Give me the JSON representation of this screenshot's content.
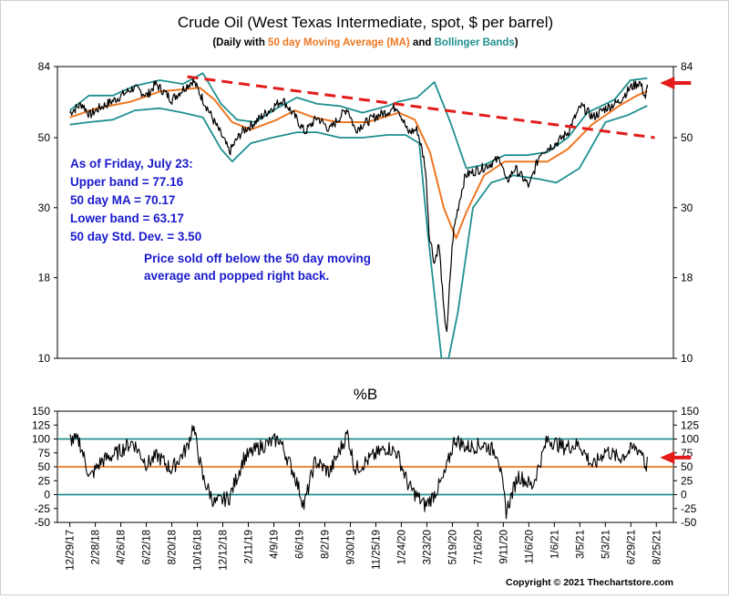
{
  "chart_data": [
    {
      "type": "line",
      "title": "Crude Oil (West Texas Intermediate, spot, $ per barrel)",
      "subtitle": {
        "prefix": "(Daily with ",
        "ma_label": "50 day Moving Average (MA)",
        "mid": " and ",
        "bb_label": "Bollinger Bands",
        "suffix": ")"
      },
      "scale": "log",
      "ylim": [
        10,
        84
      ],
      "yticks": [
        10,
        18,
        30,
        50,
        84
      ],
      "xlim": [
        "2017-12-01",
        "2021-09-20"
      ],
      "grid": false,
      "colors": {
        "price": "#000000",
        "ma": "#ee7722",
        "bands": "#1f8f8f",
        "trendline": "#e31b1b",
        "annotation": "#1a1acd",
        "arrow": "#e31b1b"
      },
      "series": [
        {
          "name": "Price",
          "x": [
            "2017-12-29",
            "2018-01-25",
            "2018-02-12",
            "2018-03-05",
            "2018-04-10",
            "2018-05-22",
            "2018-06-22",
            "2018-07-10",
            "2018-08-16",
            "2018-10-03",
            "2018-10-25",
            "2018-11-20",
            "2018-12-24",
            "2019-01-20",
            "2019-02-20",
            "2019-04-23",
            "2019-06-12",
            "2019-07-10",
            "2019-08-07",
            "2019-09-16",
            "2019-10-03",
            "2019-11-15",
            "2019-12-20",
            "2020-01-06",
            "2020-01-30",
            "2020-02-20",
            "2020-03-09",
            "2020-03-18",
            "2020-03-30",
            "2020-04-09",
            "2020-04-20",
            "2020-04-28",
            "2020-05-12",
            "2020-06-08",
            "2020-07-15",
            "2020-08-26",
            "2020-09-08",
            "2020-09-28",
            "2020-10-30",
            "2020-11-25",
            "2020-12-30",
            "2021-01-25",
            "2021-02-24",
            "2021-03-23",
            "2021-04-20",
            "2021-05-20",
            "2021-06-15",
            "2021-07-06",
            "2021-07-19",
            "2021-07-23"
          ],
          "values": [
            60,
            64,
            59,
            62,
            66,
            72,
            68,
            74,
            66,
            76,
            66,
            56,
            45,
            52,
            56,
            66,
            52,
            58,
            53,
            62,
            53,
            58,
            61,
            63,
            52,
            53,
            41,
            25,
            20,
            23,
            14,
            12,
            25,
            38,
            40,
            43,
            36,
            40,
            35,
            45,
            48,
            52,
            63,
            58,
            62,
            65,
            72,
            75,
            67,
            72
          ]
        },
        {
          "name": "50 day Moving Average (MA)",
          "x": [
            "2017-12-29",
            "2018-03-01",
            "2018-05-15",
            "2018-07-20",
            "2018-10-18",
            "2018-11-20",
            "2018-12-30",
            "2019-02-10",
            "2019-04-10",
            "2019-05-20",
            "2019-07-01",
            "2019-08-25",
            "2019-10-30",
            "2020-01-10",
            "2020-02-15",
            "2020-03-20",
            "2020-04-20",
            "2020-05-18",
            "2020-06-10",
            "2020-07-20",
            "2020-09-05",
            "2020-10-20",
            "2020-12-10",
            "2021-01-25",
            "2021-03-20",
            "2021-05-20",
            "2021-06-30",
            "2021-07-23"
          ],
          "values": [
            58,
            62,
            65,
            70,
            72,
            66,
            56,
            53,
            57,
            61,
            58,
            56,
            56,
            60,
            57,
            45,
            30,
            24,
            29,
            38,
            42,
            42,
            42,
            46,
            55,
            63,
            68,
            70.17
          ]
        },
        {
          "name": "Upper Bollinger Band",
          "x": [
            "2017-12-29",
            "2018-02-10",
            "2018-04-05",
            "2018-05-25",
            "2018-07-20",
            "2018-09-10",
            "2018-10-25",
            "2018-12-05",
            "2019-01-10",
            "2019-02-20",
            "2019-04-10",
            "2019-05-25",
            "2019-07-10",
            "2019-08-30",
            "2019-10-20",
            "2019-12-15",
            "2020-01-08",
            "2020-02-20",
            "2020-03-30",
            "2020-05-05",
            "2020-06-10",
            "2020-07-20",
            "2020-09-05",
            "2020-10-25",
            "2020-12-10",
            "2021-01-25",
            "2021-03-10",
            "2021-05-10",
            "2021-06-15",
            "2021-07-23"
          ],
          "values": [
            61,
            68,
            68,
            73,
            76,
            74,
            80,
            64,
            57,
            56,
            62,
            67,
            64,
            63,
            60,
            63,
            65,
            67,
            75,
            56,
            40,
            41,
            44,
            44,
            45,
            50,
            60,
            66,
            76,
            77.16
          ]
        },
        {
          "name": "Lower Bollinger Band",
          "x": [
            "2017-12-29",
            "2018-02-10",
            "2018-04-05",
            "2018-05-25",
            "2018-07-20",
            "2018-09-10",
            "2018-10-25",
            "2018-12-05",
            "2018-12-30",
            "2019-02-10",
            "2019-03-30",
            "2019-05-25",
            "2019-07-10",
            "2019-08-30",
            "2019-10-20",
            "2019-12-15",
            "2020-01-25",
            "2020-02-25",
            "2020-03-15",
            "2020-04-15",
            "2020-05-01",
            "2020-05-22",
            "2020-06-25",
            "2020-08-05",
            "2020-09-25",
            "2020-11-20",
            "2020-12-30",
            "2021-02-20",
            "2021-04-20",
            "2021-06-10",
            "2021-07-23"
          ],
          "values": [
            55,
            56,
            57,
            61,
            62,
            60,
            58,
            46,
            42,
            48,
            50,
            52,
            52,
            50,
            50,
            51,
            51,
            48,
            25,
            10,
            10,
            14,
            30,
            36,
            38,
            37,
            36,
            40,
            56,
            59,
            63.17
          ]
        }
      ],
      "annotations": [
        {
          "name": "stats",
          "lines": [
            "As of Friday, July 23:",
            "Upper band = 77.16",
            "50 day MA = 70.17",
            "Lower band = 63.17",
            "50 day Std. Dev. = 3.50"
          ]
        },
        {
          "name": "note",
          "lines": [
            "Price sold off below the 50 day moving",
            "average and popped right back."
          ]
        }
      ],
      "trendline": {
        "x": [
          "2018-09-20",
          "2021-08-09"
        ],
        "values": [
          78,
          50
        ]
      },
      "arrow": {
        "x": "2021-07-23",
        "value": 74
      }
    },
    {
      "type": "line",
      "title": "%B",
      "ylim": [
        -50,
        150
      ],
      "yticks": [
        -50,
        -25,
        0,
        25,
        50,
        75,
        100,
        125,
        150
      ],
      "reference_lines": [
        {
          "value": 100,
          "color": "#1f8f8f"
        },
        {
          "value": 50,
          "color": "#ee7722"
        },
        {
          "value": 0,
          "color": "#1f8f8f"
        }
      ],
      "series": [
        {
          "name": "%B",
          "x": [
            "2017-12-29",
            "2018-01-20",
            "2018-02-12",
            "2018-03-10",
            "2018-04-15",
            "2018-05-20",
            "2018-06-20",
            "2018-07-15",
            "2018-08-15",
            "2018-09-20",
            "2018-10-03",
            "2018-10-25",
            "2018-11-20",
            "2018-12-24",
            "2019-01-25",
            "2019-03-01",
            "2019-04-15",
            "2019-05-20",
            "2019-06-10",
            "2019-07-05",
            "2019-08-07",
            "2019-09-16",
            "2019-10-03",
            "2019-11-15",
            "2019-12-15",
            "2020-01-06",
            "2020-02-01",
            "2020-03-09",
            "2020-03-25",
            "2020-04-20",
            "2020-05-15",
            "2020-06-10",
            "2020-07-20",
            "2020-08-20",
            "2020-09-08",
            "2020-10-05",
            "2020-11-06",
            "2020-12-10",
            "2021-01-15",
            "2021-02-20",
            "2021-03-23",
            "2021-04-20",
            "2021-05-20",
            "2021-06-25",
            "2021-07-15",
            "2021-07-19",
            "2021-07-23"
          ],
          "values": [
            100,
            95,
            30,
            60,
            75,
            95,
            55,
            70,
            45,
            85,
            125,
            30,
            -15,
            -5,
            65,
            85,
            100,
            35,
            -20,
            60,
            40,
            110,
            45,
            70,
            85,
            75,
            15,
            -20,
            -5,
            30,
            100,
            85,
            90,
            75,
            -30,
            35,
            15,
            100,
            85,
            90,
            50,
            80,
            65,
            85,
            75,
            40,
            65
          ]
        }
      ]
    }
  ],
  "x_tick_labels": [
    "12/29/17",
    "2/28/18",
    "4/26/18",
    "6/22/18",
    "8/20/18",
    "10/16/18",
    "12/12/18",
    "2/11/19",
    "4/9/19",
    "6/6/19",
    "8/2/19",
    "9/30/19",
    "11/25/19",
    "1/24/20",
    "3/23/20",
    "5/19/20",
    "7/16/20",
    "9/11/20",
    "11/6/20",
    "1/6/21",
    "3/5/21",
    "5/3/21",
    "6/29/21",
    "8/25/21"
  ],
  "copyright": "Copyright © 2021 Thechartstore.com"
}
